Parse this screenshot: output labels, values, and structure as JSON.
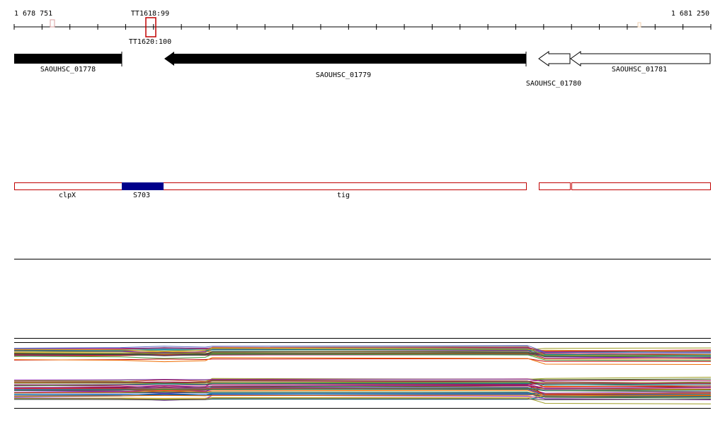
{
  "axis": {
    "start": "1 678 751",
    "end": "1 681 250"
  },
  "markers": [
    "TT1618:99",
    "TT1620:100"
  ],
  "genes": [
    "SAOUHSC_01778",
    "SAOUHSC_01779",
    "SAOUHSC_01780",
    "SAOUHSC_01781"
  ],
  "regions": [
    "clpX",
    "S703",
    "tig"
  ]
}
